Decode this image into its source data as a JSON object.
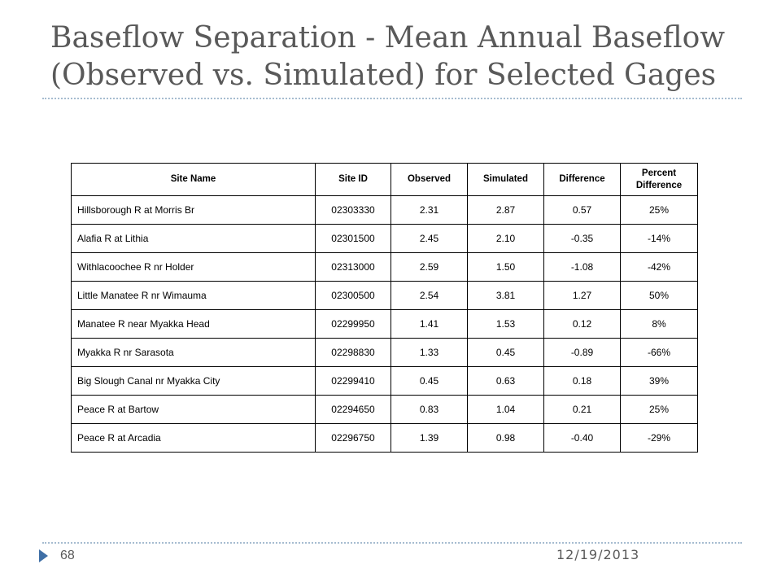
{
  "slide": {
    "title_line1": "Baseflow Separation - Mean Annual Baseflow",
    "title_line2": "(Observed vs. Simulated) for Selected Gages",
    "page_number": "68",
    "date": "12/19/2013",
    "accent_color": "#3f6fa6",
    "rule_color": "#a6bcd0"
  },
  "table": {
    "headers": [
      "Site Name",
      "Site ID",
      "Observed",
      "Simulated",
      "Difference",
      "Percent Difference"
    ],
    "rows": [
      [
        "Hillsborough R at Morris Br",
        "02303330",
        "2.31",
        "2.87",
        "0.57",
        "25%"
      ],
      [
        "Alafia R at Lithia",
        "02301500",
        "2.45",
        "2.10",
        "-0.35",
        "-14%"
      ],
      [
        "Withlacoochee R nr Holder",
        "02313000",
        "2.59",
        "1.50",
        "-1.08",
        "-42%"
      ],
      [
        "Little Manatee R nr Wimauma",
        "02300500",
        "2.54",
        "3.81",
        "1.27",
        "50%"
      ],
      [
        "Manatee R near  Myakka Head",
        "02299950",
        "1.41",
        "1.53",
        "0.12",
        "8%"
      ],
      [
        "Myakka R nr Sarasota",
        "02298830",
        "1.33",
        "0.45",
        "-0.89",
        "-66%"
      ],
      [
        "Big Slough Canal nr Myakka City",
        "02299410",
        "0.45",
        "0.63",
        "0.18",
        "39%"
      ],
      [
        "Peace R at Bartow",
        "02294650",
        "0.83",
        "1.04",
        "0.21",
        "25%"
      ],
      [
        "Peace R at Arcadia",
        "02296750",
        "1.39",
        "0.98",
        "-0.40",
        "-29%"
      ]
    ]
  }
}
